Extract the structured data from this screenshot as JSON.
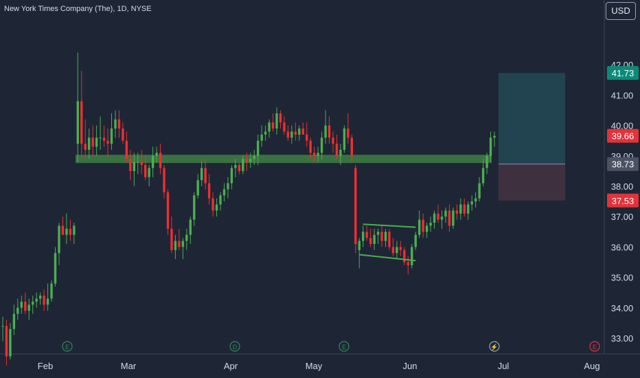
{
  "header": {
    "symbol_title": "New York Times Company (The), 1D, NYSE",
    "currency": "USD"
  },
  "colors": {
    "background": "#1e2636",
    "up": "#4caf50",
    "down": "#ef2f2f",
    "support_band": "#3e7a43",
    "target_zone": "#214450",
    "stop_zone": "#3f3040",
    "grid_text": "#d8dce6",
    "label_teal": "#0d8a79",
    "label_red": "#e2323a",
    "label_gray": "#4b5262"
  },
  "chart_data": {
    "type": "candlestick",
    "y_ticks": [
      "33.00",
      "34.00",
      "35.00",
      "36.00",
      "37.00",
      "38.00",
      "39.00",
      "40.00",
      "41.00",
      "42.00"
    ],
    "x_labels": [
      "Feb",
      "Mar",
      "Apr",
      "May",
      "Jun",
      "Jul",
      "Aug"
    ],
    "price_labels": [
      {
        "text": "41.73",
        "role": "target"
      },
      {
        "text": "39.66",
        "role": "last"
      },
      {
        "text": "38.73",
        "role": "entry"
      },
      {
        "text": "37.53",
        "role": "stop"
      }
    ],
    "support_level": 38.9,
    "position": {
      "target": 41.73,
      "entry": 38.73,
      "stop": 37.53
    },
    "channel": {
      "upper": [
        [
          36.7,
          36.65
        ]
      ],
      "lower": [
        [
          35.8,
          35.6
        ]
      ]
    },
    "event_markers": [
      {
        "label": "E",
        "type": "earnings"
      },
      {
        "label": "D",
        "type": "dividend"
      },
      {
        "label": "E",
        "type": "earnings"
      },
      {
        "label": "⚡",
        "type": "split"
      },
      {
        "label": "E",
        "type": "earnings"
      }
    ],
    "candles": [
      [
        33.4,
        33.7,
        32.9,
        33.4
      ],
      [
        33.4,
        33.6,
        32.1,
        32.4
      ],
      [
        32.4,
        33.5,
        32.3,
        33.3
      ],
      [
        33.3,
        34.1,
        33.1,
        33.8
      ],
      [
        33.8,
        34.3,
        33.6,
        34.0
      ],
      [
        34.0,
        34.4,
        33.8,
        34.2
      ],
      [
        34.2,
        34.5,
        33.8,
        33.9
      ],
      [
        33.9,
        34.3,
        33.6,
        34.1
      ],
      [
        34.1,
        34.4,
        33.8,
        34.2
      ],
      [
        34.2,
        34.5,
        34.0,
        34.3
      ],
      [
        34.3,
        34.5,
        34.1,
        34.4
      ],
      [
        34.4,
        34.6,
        33.9,
        34.1
      ],
      [
        34.1,
        34.8,
        33.9,
        34.3
      ],
      [
        34.3,
        34.9,
        34.2,
        34.8
      ],
      [
        34.8,
        36.0,
        34.7,
        35.8
      ],
      [
        35.8,
        36.8,
        35.4,
        36.7
      ],
      [
        36.7,
        37.0,
        36.4,
        36.4
      ],
      [
        36.4,
        37.1,
        36.1,
        36.6
      ],
      [
        36.6,
        36.9,
        36.2,
        36.4
      ],
      [
        36.4,
        36.8,
        36.1,
        36.7
      ],
      [
        39.4,
        42.4,
        38.8,
        40.8
      ],
      [
        40.8,
        41.8,
        38.9,
        39.4
      ],
      [
        39.4,
        40.2,
        38.9,
        39.2
      ],
      [
        39.2,
        39.9,
        38.9,
        39.6
      ],
      [
        39.6,
        40.0,
        39.0,
        39.3
      ],
      [
        39.3,
        40.0,
        39.0,
        39.6
      ],
      [
        39.6,
        40.3,
        39.2,
        39.6
      ],
      [
        39.6,
        40.0,
        39.3,
        39.5
      ],
      [
        39.5,
        39.9,
        39.0,
        39.4
      ],
      [
        39.4,
        40.4,
        39.2,
        39.9
      ],
      [
        39.9,
        40.5,
        39.6,
        40.2
      ],
      [
        40.2,
        40.5,
        39.6,
        39.9
      ],
      [
        39.9,
        40.1,
        39.4,
        39.5
      ],
      [
        39.5,
        39.8,
        38.8,
        38.9
      ],
      [
        38.9,
        39.2,
        38.2,
        38.5
      ],
      [
        38.5,
        39.1,
        38.0,
        38.8
      ],
      [
        38.8,
        39.1,
        38.4,
        38.8
      ],
      [
        38.8,
        39.2,
        38.4,
        38.7
      ],
      [
        38.7,
        39.0,
        38.2,
        38.3
      ],
      [
        38.3,
        38.7,
        38.0,
        38.6
      ],
      [
        38.6,
        39.3,
        38.3,
        39.0
      ],
      [
        39.0,
        39.3,
        38.8,
        39.1
      ],
      [
        39.1,
        39.4,
        38.4,
        38.6
      ],
      [
        38.6,
        38.7,
        37.6,
        37.8
      ],
      [
        37.8,
        37.9,
        36.4,
        36.6
      ],
      [
        36.6,
        37.0,
        35.8,
        35.9
      ],
      [
        35.9,
        36.4,
        35.6,
        36.2
      ],
      [
        36.2,
        36.6,
        35.9,
        36.0
      ],
      [
        36.0,
        36.3,
        35.6,
        36.2
      ],
      [
        36.2,
        36.6,
        35.9,
        36.4
      ],
      [
        36.4,
        37.0,
        36.1,
        36.9
      ],
      [
        36.9,
        37.8,
        36.7,
        37.7
      ],
      [
        37.7,
        38.4,
        37.6,
        38.2
      ],
      [
        38.2,
        38.8,
        38.0,
        38.6
      ],
      [
        38.6,
        38.9,
        37.9,
        38.1
      ],
      [
        38.1,
        38.4,
        37.4,
        37.6
      ],
      [
        37.6,
        37.8,
        37.0,
        37.2
      ],
      [
        37.2,
        37.6,
        37.0,
        37.4
      ],
      [
        37.4,
        37.8,
        37.2,
        37.7
      ],
      [
        37.7,
        38.1,
        37.5,
        37.9
      ],
      [
        37.9,
        38.3,
        37.6,
        38.1
      ],
      [
        38.1,
        38.7,
        37.9,
        38.6
      ],
      [
        38.6,
        38.9,
        38.3,
        38.7
      ],
      [
        38.7,
        38.8,
        38.4,
        38.5
      ],
      [
        38.5,
        39.0,
        38.4,
        38.9
      ],
      [
        38.9,
        39.1,
        38.5,
        38.8
      ],
      [
        38.8,
        39.1,
        38.6,
        38.9
      ],
      [
        38.9,
        39.2,
        38.7,
        39.0
      ],
      [
        39.0,
        39.7,
        38.7,
        39.5
      ],
      [
        39.5,
        40.0,
        39.3,
        39.7
      ],
      [
        39.7,
        40.0,
        39.5,
        39.8
      ],
      [
        39.8,
        40.2,
        39.6,
        40.1
      ],
      [
        40.1,
        40.4,
        39.8,
        39.9
      ],
      [
        39.9,
        40.6,
        39.7,
        40.4
      ],
      [
        40.4,
        40.5,
        39.9,
        40.1
      ],
      [
        40.1,
        40.3,
        39.7,
        39.8
      ],
      [
        39.8,
        40.0,
        39.5,
        39.6
      ],
      [
        39.6,
        40.0,
        39.4,
        39.8
      ],
      [
        39.8,
        40.1,
        39.5,
        39.7
      ],
      [
        39.7,
        40.0,
        39.5,
        39.9
      ],
      [
        39.9,
        40.1,
        39.7,
        39.7
      ],
      [
        39.7,
        40.1,
        39.3,
        39.5
      ],
      [
        39.5,
        39.6,
        38.9,
        39.1
      ],
      [
        39.1,
        39.3,
        38.8,
        39.0
      ],
      [
        39.0,
        39.3,
        38.8,
        39.1
      ],
      [
        39.1,
        39.8,
        38.9,
        39.6
      ],
      [
        39.6,
        40.5,
        39.4,
        40.0
      ],
      [
        40.0,
        40.3,
        39.4,
        39.6
      ],
      [
        39.6,
        39.8,
        39.1,
        39.4
      ],
      [
        39.4,
        39.7,
        38.9,
        39.0
      ],
      [
        39.0,
        39.4,
        38.7,
        39.2
      ],
      [
        39.2,
        40.0,
        39.1,
        39.9
      ],
      [
        39.9,
        40.4,
        39.4,
        39.6
      ],
      [
        39.6,
        39.7,
        38.8,
        39.0
      ],
      [
        38.6,
        38.7,
        35.8,
        36.1
      ],
      [
        35.9,
        36.3,
        35.3,
        36.2
      ],
      [
        36.2,
        36.7,
        36.0,
        36.5
      ],
      [
        36.5,
        36.7,
        36.2,
        36.3
      ],
      [
        36.3,
        36.6,
        36.0,
        36.1
      ],
      [
        36.1,
        36.6,
        35.9,
        36.4
      ],
      [
        36.4,
        36.6,
        36.1,
        36.5
      ],
      [
        36.5,
        36.7,
        36.0,
        36.2
      ],
      [
        36.2,
        36.6,
        36.0,
        36.5
      ],
      [
        36.5,
        36.6,
        35.9,
        36.0
      ],
      [
        36.0,
        36.3,
        35.7,
        35.8
      ],
      [
        35.8,
        36.2,
        35.6,
        36.0
      ],
      [
        36.0,
        36.2,
        35.7,
        35.9
      ],
      [
        35.9,
        36.0,
        35.4,
        35.5
      ],
      [
        35.5,
        35.7,
        35.1,
        35.4
      ],
      [
        35.4,
        36.1,
        35.3,
        36.0
      ],
      [
        36.0,
        36.5,
        35.9,
        36.4
      ],
      [
        36.4,
        37.2,
        36.3,
        36.9
      ],
      [
        36.9,
        37.1,
        36.3,
        36.5
      ],
      [
        36.5,
        36.8,
        36.3,
        36.7
      ],
      [
        36.7,
        37.0,
        36.5,
        36.8
      ],
      [
        36.8,
        37.2,
        36.6,
        37.1
      ],
      [
        37.1,
        37.4,
        36.8,
        36.9
      ],
      [
        36.9,
        37.2,
        36.6,
        37.0
      ],
      [
        37.0,
        37.3,
        36.8,
        37.2
      ],
      [
        37.2,
        37.4,
        36.5,
        36.7
      ],
      [
        36.7,
        37.3,
        36.6,
        37.2
      ],
      [
        37.2,
        37.4,
        36.9,
        37.1
      ],
      [
        37.1,
        37.6,
        36.9,
        37.4
      ],
      [
        37.4,
        37.6,
        37.0,
        37.1
      ],
      [
        37.1,
        37.5,
        36.9,
        37.4
      ],
      [
        37.4,
        37.7,
        37.2,
        37.5
      ],
      [
        37.5,
        37.8,
        37.3,
        37.6
      ],
      [
        37.6,
        38.3,
        37.5,
        38.1
      ],
      [
        38.1,
        38.9,
        38.0,
        38.6
      ],
      [
        38.6,
        39.1,
        38.4,
        39.0
      ],
      [
        39.0,
        39.8,
        38.8,
        39.6
      ],
      [
        39.6,
        39.8,
        39.3,
        39.66
      ]
    ]
  }
}
